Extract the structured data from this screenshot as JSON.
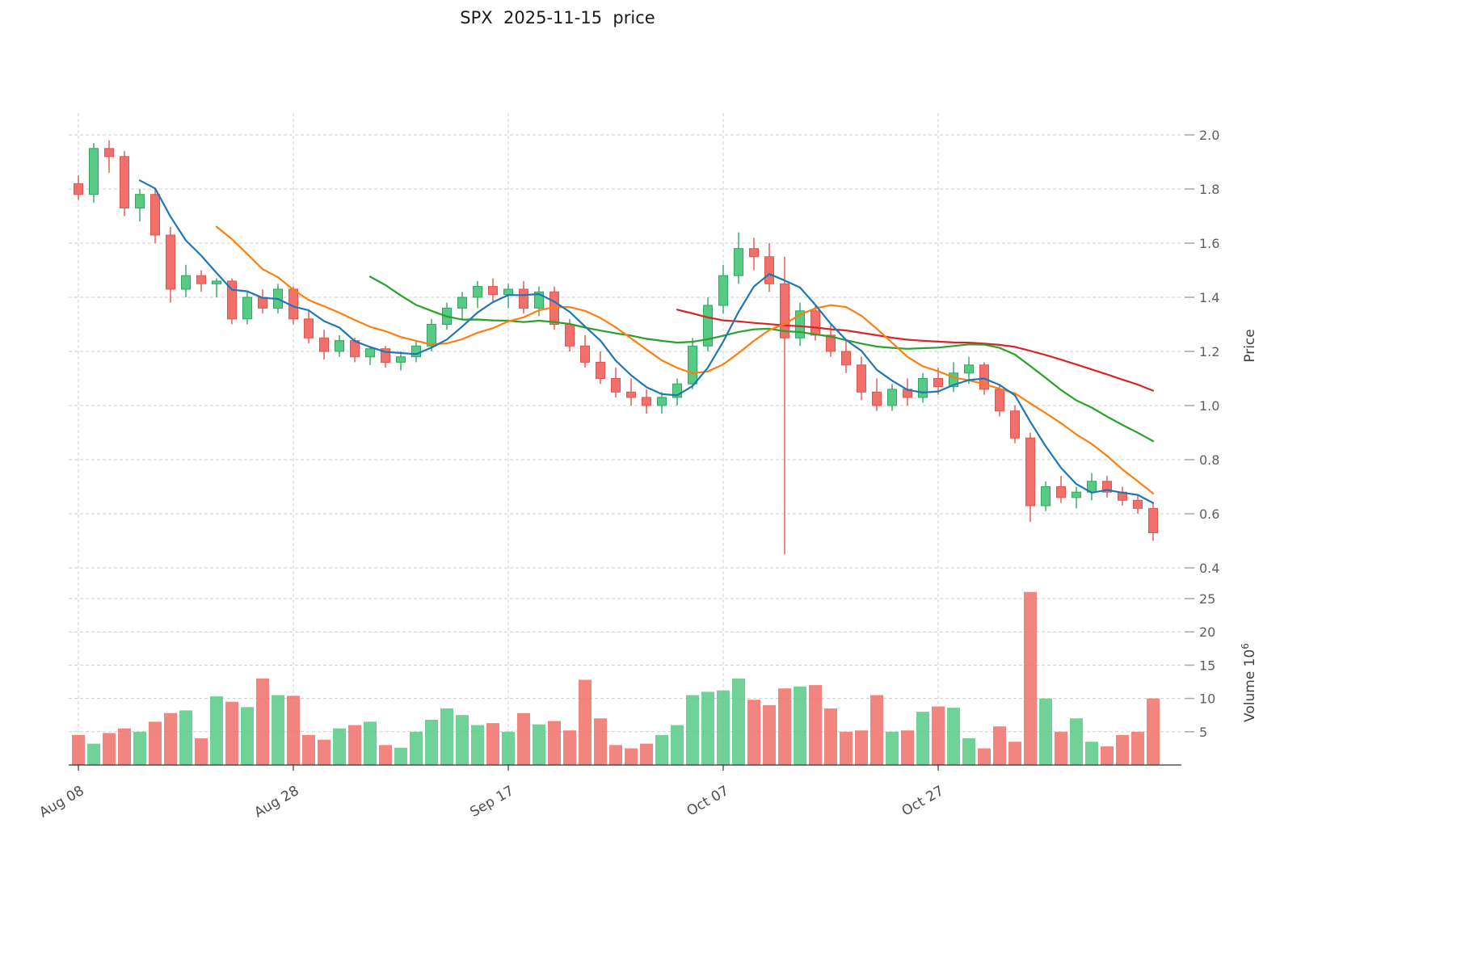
{
  "colors": {
    "up": "#57ca84",
    "up_edge": "#2fa866",
    "down": "#f1706b",
    "down_edge": "#e2544e",
    "grid": "#cfcfcf",
    "text": "#4f4f4f"
  },
  "chart_data": {
    "type": "candlestick",
    "title": "SPX  2025-11-15  price",
    "x_axis": {
      "tick_labels": [
        "Aug 08",
        "Aug 28",
        "Sep 17",
        "Oct 07",
        "Oct 27"
      ],
      "tick_indices": [
        0,
        14,
        28,
        42,
        56
      ]
    },
    "price_axis": {
      "label": "Price",
      "ticks": [
        2.0,
        1.8,
        1.6,
        1.4,
        1.2,
        1.0,
        0.8,
        0.6,
        0.4
      ],
      "min": 0.4,
      "max": 2.0
    },
    "volume_axis": {
      "label": "Volume",
      "unit_base": "10",
      "unit_exponent": "6",
      "ticks": [
        25,
        20,
        15,
        10,
        5
      ]
    },
    "moving_averages": [
      {
        "name": "sma5",
        "period": 5,
        "color": "#1f77b4"
      },
      {
        "name": "sma10",
        "period": 10,
        "color": "#ff7f0e"
      },
      {
        "name": "sma20",
        "period": 20,
        "color": "#2ca02c"
      },
      {
        "name": "sma40",
        "period": 40,
        "color": "#d62728"
      }
    ],
    "dates": [
      "Aug 08",
      "Aug 11",
      "Aug 12",
      "Aug 13",
      "Aug 14",
      "Aug 15",
      "Aug 18",
      "Aug 19",
      "Aug 20",
      "Aug 21",
      "Aug 22",
      "Aug 25",
      "Aug 26",
      "Aug 27",
      "Aug 28",
      "Aug 29",
      "Sep 01",
      "Sep 02",
      "Sep 03",
      "Sep 04",
      "Sep 05",
      "Sep 08",
      "Sep 09",
      "Sep 10",
      "Sep 11",
      "Sep 12",
      "Sep 15",
      "Sep 16",
      "Sep 17",
      "Sep 18",
      "Sep 19",
      "Sep 22",
      "Sep 23",
      "Sep 24",
      "Sep 25",
      "Sep 26",
      "Sep 29",
      "Sep 30",
      "Oct 01",
      "Oct 02",
      "Oct 03",
      "Oct 06",
      "Oct 07",
      "Oct 08",
      "Oct 09",
      "Oct 10",
      "Oct 13",
      "Oct 14",
      "Oct 15",
      "Oct 16",
      "Oct 17",
      "Oct 20",
      "Oct 21",
      "Oct 22",
      "Oct 23",
      "Oct 24",
      "Oct 27",
      "Oct 28",
      "Oct 29",
      "Oct 30",
      "Oct 31",
      "Nov 03",
      "Nov 04",
      "Nov 05",
      "Nov 06",
      "Nov 07",
      "Nov 10",
      "Nov 11",
      "Nov 12",
      "Nov 13",
      "Nov 14"
    ],
    "ohlcv": [
      [
        1.82,
        1.85,
        1.76,
        1.78,
        4.5
      ],
      [
        1.78,
        1.97,
        1.75,
        1.95,
        3.2
      ],
      [
        1.95,
        1.98,
        1.86,
        1.92,
        4.8
      ],
      [
        1.92,
        1.94,
        1.7,
        1.73,
        5.5
      ],
      [
        1.73,
        1.8,
        1.68,
        1.78,
        5.0
      ],
      [
        1.78,
        1.8,
        1.6,
        1.63,
        6.5
      ],
      [
        1.63,
        1.66,
        1.38,
        1.43,
        7.8
      ],
      [
        1.43,
        1.52,
        1.4,
        1.48,
        8.2
      ],
      [
        1.48,
        1.5,
        1.42,
        1.45,
        4.0
      ],
      [
        1.45,
        1.47,
        1.4,
        1.46,
        10.3
      ],
      [
        1.46,
        1.47,
        1.3,
        1.32,
        9.5
      ],
      [
        1.32,
        1.42,
        1.3,
        1.4,
        8.7
      ],
      [
        1.4,
        1.43,
        1.34,
        1.36,
        13.0
      ],
      [
        1.36,
        1.45,
        1.34,
        1.43,
        10.5
      ],
      [
        1.43,
        1.44,
        1.3,
        1.32,
        10.4
      ],
      [
        1.32,
        1.35,
        1.23,
        1.25,
        4.5
      ],
      [
        1.25,
        1.28,
        1.17,
        1.2,
        3.8
      ],
      [
        1.2,
        1.26,
        1.18,
        1.24,
        5.5
      ],
      [
        1.24,
        1.25,
        1.16,
        1.18,
        6.0
      ],
      [
        1.18,
        1.22,
        1.15,
        1.21,
        6.5
      ],
      [
        1.21,
        1.22,
        1.14,
        1.16,
        3.0
      ],
      [
        1.16,
        1.2,
        1.13,
        1.18,
        2.6
      ],
      [
        1.18,
        1.24,
        1.16,
        1.22,
        5.0
      ],
      [
        1.22,
        1.32,
        1.2,
        1.3,
        6.8
      ],
      [
        1.3,
        1.38,
        1.28,
        1.36,
        8.5
      ],
      [
        1.36,
        1.42,
        1.32,
        1.4,
        7.5
      ],
      [
        1.4,
        1.46,
        1.36,
        1.44,
        6.0
      ],
      [
        1.44,
        1.47,
        1.38,
        1.41,
        6.3
      ],
      [
        1.41,
        1.45,
        1.36,
        1.43,
        5.0
      ],
      [
        1.43,
        1.46,
        1.34,
        1.36,
        7.8
      ],
      [
        1.36,
        1.44,
        1.33,
        1.42,
        6.1
      ],
      [
        1.42,
        1.44,
        1.28,
        1.3,
        6.6
      ],
      [
        1.3,
        1.32,
        1.2,
        1.22,
        5.2
      ],
      [
        1.22,
        1.26,
        1.14,
        1.16,
        12.8
      ],
      [
        1.16,
        1.2,
        1.08,
        1.1,
        7.0
      ],
      [
        1.1,
        1.14,
        1.03,
        1.05,
        3.0
      ],
      [
        1.05,
        1.1,
        1.0,
        1.03,
        2.5
      ],
      [
        1.03,
        1.06,
        0.97,
        1.0,
        3.2
      ],
      [
        1.0,
        1.05,
        0.97,
        1.03,
        4.5
      ],
      [
        1.03,
        1.1,
        1.0,
        1.08,
        6.0
      ],
      [
        1.08,
        1.25,
        1.06,
        1.22,
        10.5
      ],
      [
        1.22,
        1.4,
        1.2,
        1.37,
        11.0
      ],
      [
        1.37,
        1.52,
        1.34,
        1.48,
        11.2
      ],
      [
        1.48,
        1.64,
        1.45,
        1.58,
        13.0
      ],
      [
        1.58,
        1.62,
        1.5,
        1.55,
        9.8
      ],
      [
        1.55,
        1.6,
        1.42,
        1.45,
        9.0
      ],
      [
        1.45,
        1.55,
        0.45,
        1.25,
        11.5
      ],
      [
        1.25,
        1.38,
        1.22,
        1.35,
        11.8
      ],
      [
        1.35,
        1.37,
        1.24,
        1.26,
        12.0
      ],
      [
        1.26,
        1.3,
        1.18,
        1.2,
        8.5
      ],
      [
        1.2,
        1.24,
        1.12,
        1.15,
        5.0
      ],
      [
        1.15,
        1.18,
        1.02,
        1.05,
        5.2
      ],
      [
        1.05,
        1.1,
        0.98,
        1.0,
        10.5
      ],
      [
        1.0,
        1.08,
        0.98,
        1.06,
        5.0
      ],
      [
        1.06,
        1.1,
        1.0,
        1.03,
        5.2
      ],
      [
        1.03,
        1.12,
        1.01,
        1.1,
        8.0
      ],
      [
        1.1,
        1.14,
        1.04,
        1.07,
        8.8
      ],
      [
        1.07,
        1.16,
        1.05,
        1.12,
        8.6
      ],
      [
        1.12,
        1.18,
        1.08,
        1.15,
        4.0
      ],
      [
        1.15,
        1.16,
        1.04,
        1.06,
        2.5
      ],
      [
        1.06,
        1.08,
        0.96,
        0.98,
        5.8
      ],
      [
        0.98,
        1.0,
        0.86,
        0.88,
        3.5
      ],
      [
        0.88,
        0.9,
        0.57,
        0.63,
        26.0
      ],
      [
        0.63,
        0.72,
        0.61,
        0.7,
        10.0
      ],
      [
        0.7,
        0.74,
        0.64,
        0.66,
        5.0
      ],
      [
        0.66,
        0.7,
        0.62,
        0.68,
        7.0
      ],
      [
        0.68,
        0.75,
        0.65,
        0.72,
        3.5
      ],
      [
        0.72,
        0.74,
        0.66,
        0.68,
        2.8
      ],
      [
        0.68,
        0.7,
        0.63,
        0.65,
        4.5
      ],
      [
        0.65,
        0.67,
        0.6,
        0.62,
        5.0
      ],
      [
        0.62,
        0.64,
        0.5,
        0.53,
        10.0
      ]
    ]
  }
}
